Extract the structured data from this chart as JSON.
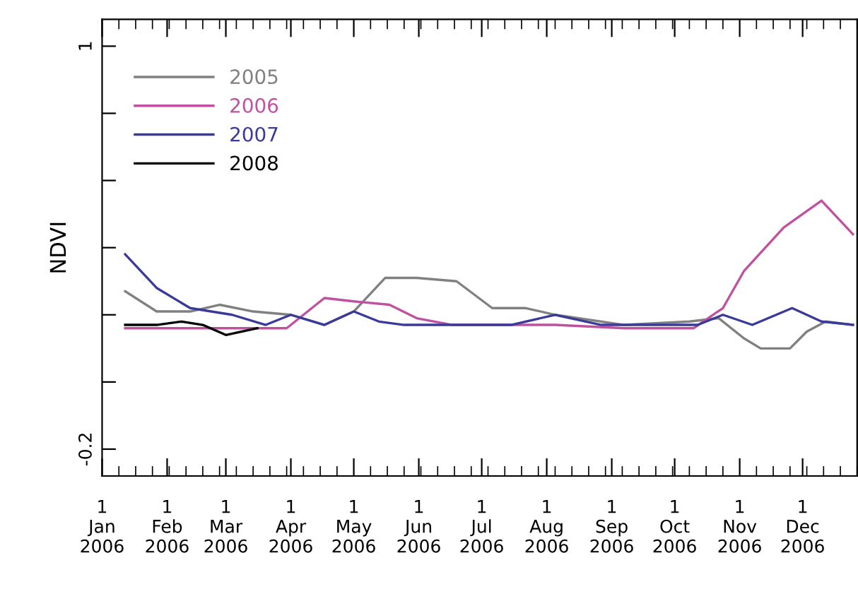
{
  "chart_data": {
    "type": "line",
    "ylabel": "NDVI",
    "xlim": [
      "2006-01-01",
      "2006-12-27"
    ],
    "xticks": [
      {
        "value": "2006-01-01",
        "label": "1\nJan\n2006"
      },
      {
        "value": "2006-02-01",
        "label": "1\nFeb\n2006"
      },
      {
        "value": "2006-03-01",
        "label": "1\nMar\n2006"
      },
      {
        "value": "2006-04-01",
        "label": "1\nApr\n2006"
      },
      {
        "value": "2006-05-01",
        "label": "1\nMay\n2006"
      },
      {
        "value": "2006-06-01",
        "label": "1\nJun\n2006"
      },
      {
        "value": "2006-07-01",
        "label": "1\nJul\n2006"
      },
      {
        "value": "2006-08-01",
        "label": "1\nAug\n2006"
      },
      {
        "value": "2006-09-01",
        "label": "1\nSep\n2006"
      },
      {
        "value": "2006-10-01",
        "label": "1\nOct\n2006"
      },
      {
        "value": "2006-11-01",
        "label": "1\nNov\n2006"
      },
      {
        "value": "2006-12-01",
        "label": "1\nDec\n2006"
      }
    ],
    "ylim": [
      -0.28,
      1.08
    ],
    "yticks": [
      {
        "value": -0.2,
        "label": "-0.2"
      },
      {
        "value": 0,
        "label": null
      },
      {
        "value": 0.2,
        "label": null
      },
      {
        "value": 0.4,
        "label": null
      },
      {
        "value": 0.6,
        "label": null
      },
      {
        "value": 0.8,
        "label": null
      },
      1
    ],
    "grid": false,
    "legend": "top left",
    "marker": "none",
    "line_style": "solid",
    "series": [
      {
        "name": "2005",
        "color": "#808080",
        "x": [
          "2006-01-12",
          "2006-01-27",
          "2006-02-12",
          "2006-02-26",
          "2006-03-14",
          "2006-04-01",
          "2006-04-17",
          "2006-05-01",
          "2006-05-16",
          "2006-05-31",
          "2006-06-19",
          "2006-07-06",
          "2006-07-22",
          "2006-08-05",
          "2006-09-07",
          "2006-10-08",
          "2006-10-22",
          "2006-11-03",
          "2006-11-11",
          "2006-11-25",
          "2006-12-03",
          "2006-12-12",
          "2006-12-25"
        ],
        "values": [
          0.27,
          0.21,
          0.21,
          0.23,
          0.21,
          0.2,
          0.17,
          0.21,
          0.31,
          0.31,
          0.3,
          0.22,
          0.22,
          0.2,
          0.17,
          0.18,
          0.19,
          0.13,
          0.1,
          0.1,
          0.15,
          0.18,
          0.17
        ]
      },
      {
        "name": "2006",
        "color": "#c050a0",
        "x": [
          "2006-01-12",
          "2006-03-16",
          "2006-03-30",
          "2006-04-17",
          "2006-05-01",
          "2006-05-18",
          "2006-05-31",
          "2006-06-17",
          "2006-08-05",
          "2006-09-07",
          "2006-10-10",
          "2006-10-24",
          "2006-11-03",
          "2006-11-22",
          "2006-12-10",
          "2006-12-25"
        ],
        "values": [
          0.16,
          0.16,
          0.16,
          0.25,
          0.24,
          0.23,
          0.19,
          0.17,
          0.17,
          0.16,
          0.16,
          0.22,
          0.33,
          0.46,
          0.54,
          0.44
        ]
      },
      {
        "name": "2007",
        "color": "#3a3a9a",
        "x": [
          "2006-01-12",
          "2006-01-27",
          "2006-02-12",
          "2006-03-04",
          "2006-03-20",
          "2006-04-01",
          "2006-04-17",
          "2006-05-01",
          "2006-05-13",
          "2006-05-25",
          "2006-06-17",
          "2006-07-15",
          "2006-08-05",
          "2006-08-27",
          "2006-10-12",
          "2006-10-24",
          "2006-11-07",
          "2006-11-26",
          "2006-12-10",
          "2006-12-25"
        ],
        "values": [
          0.38,
          0.28,
          0.22,
          0.2,
          0.17,
          0.2,
          0.17,
          0.21,
          0.18,
          0.17,
          0.17,
          0.17,
          0.2,
          0.17,
          0.17,
          0.2,
          0.17,
          0.22,
          0.18,
          0.17
        ]
      },
      {
        "name": "2008",
        "color": "#000000",
        "x": [
          "2006-01-12",
          "2006-01-27",
          "2006-02-08",
          "2006-02-18",
          "2006-03-01",
          "2006-03-16"
        ],
        "values": [
          0.17,
          0.17,
          0.18,
          0.17,
          0.14,
          0.16
        ]
      }
    ]
  }
}
